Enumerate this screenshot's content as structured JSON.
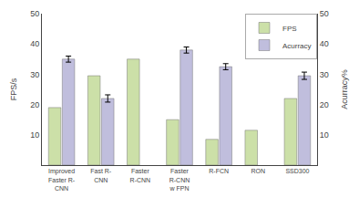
{
  "chart_data": {
    "type": "bar",
    "categories": [
      "Improved\nFaster R-\nCNN",
      "Fast R-\nCNN",
      "Faster\nR-CNN",
      "Faster\nR-CNN\nw FPN",
      "R-FCN",
      "RON",
      "SSD300"
    ],
    "series": [
      {
        "name": "FPS",
        "color": "#cce0a8",
        "values": [
          19,
          29.5,
          35,
          15,
          8.5,
          11.5,
          22
        ]
      },
      {
        "name": "Acurracy",
        "color": "#c0bedd",
        "axis": "y2",
        "values": [
          35,
          22,
          0,
          38,
          32.5,
          0,
          29.5
        ],
        "errors": [
          1.0,
          1.2,
          0,
          1.0,
          1.0,
          0,
          1.2
        ]
      }
    ],
    "ylabel": "FPS/s",
    "y2label": "Acurracy%",
    "ylim": [
      0,
      50
    ],
    "yticks": [
      10,
      20,
      30,
      40,
      50
    ],
    "y2lim": [
      0,
      50
    ],
    "y2ticks": [
      10,
      20,
      30,
      40,
      50
    ],
    "legend": "upper right",
    "grid": false
  }
}
